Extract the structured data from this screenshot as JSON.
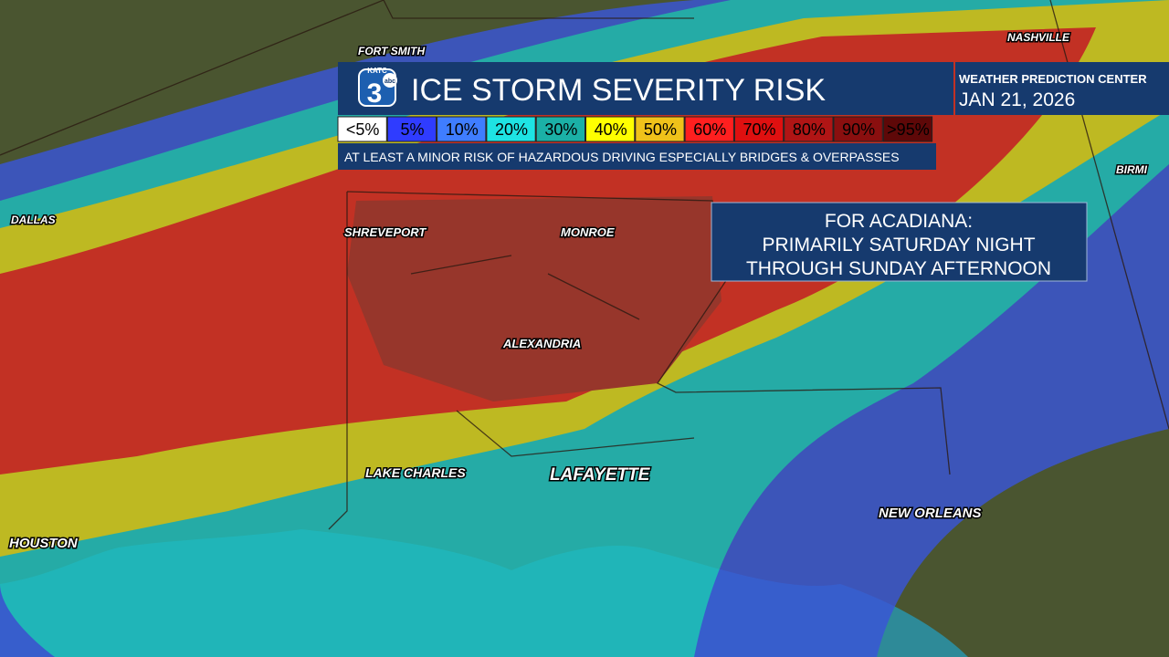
{
  "header": {
    "station": "KATC",
    "logo_number": "3",
    "network": "abc",
    "title": "ICE STORM SEVERITY RISK",
    "source": "WEATHER PREDICTION CENTER",
    "date": "JAN 21, 2026"
  },
  "legend": [
    {
      "label": "<5%",
      "color": "#ffffff"
    },
    {
      "label": "5%",
      "color": "#2f3cff"
    },
    {
      "label": "10%",
      "color": "#3f7dff"
    },
    {
      "label": "20%",
      "color": "#1ee3e3"
    },
    {
      "label": "30%",
      "color": "#1bb0a6"
    },
    {
      "label": "40%",
      "color": "#ffff00"
    },
    {
      "label": "50%",
      "color": "#efc21a"
    },
    {
      "label": "60%",
      "color": "#ff1f1f"
    },
    {
      "label": "70%",
      "color": "#df1010"
    },
    {
      "label": "80%",
      "color": "#b01515"
    },
    {
      "label": "90%",
      "color": "#8a0f0f"
    },
    {
      "label": ">95%",
      "color": "#5e0808"
    }
  ],
  "note": "AT LEAST A MINOR RISK OF HAZARDOUS DRIVING ESPECIALLY BRIDGES & OVERPASSES",
  "callout": [
    "FOR ACADIANA:",
    "PRIMARILY SATURDAY NIGHT",
    "THROUGH SUNDAY AFTERNOON"
  ],
  "cities": [
    {
      "name": "FORT SMITH"
    },
    {
      "name": "NASHVILLE"
    },
    {
      "name": "DALLAS"
    },
    {
      "name": "SHREVEPORT"
    },
    {
      "name": "MONROE"
    },
    {
      "name": "ALEXANDRIA"
    },
    {
      "name": "LAKE CHARLES"
    },
    {
      "name": "LAFAYETTE"
    },
    {
      "name": "HOUSTON"
    },
    {
      "name": "NEW ORLEANS"
    },
    {
      "name": "BIRMI"
    }
  ]
}
